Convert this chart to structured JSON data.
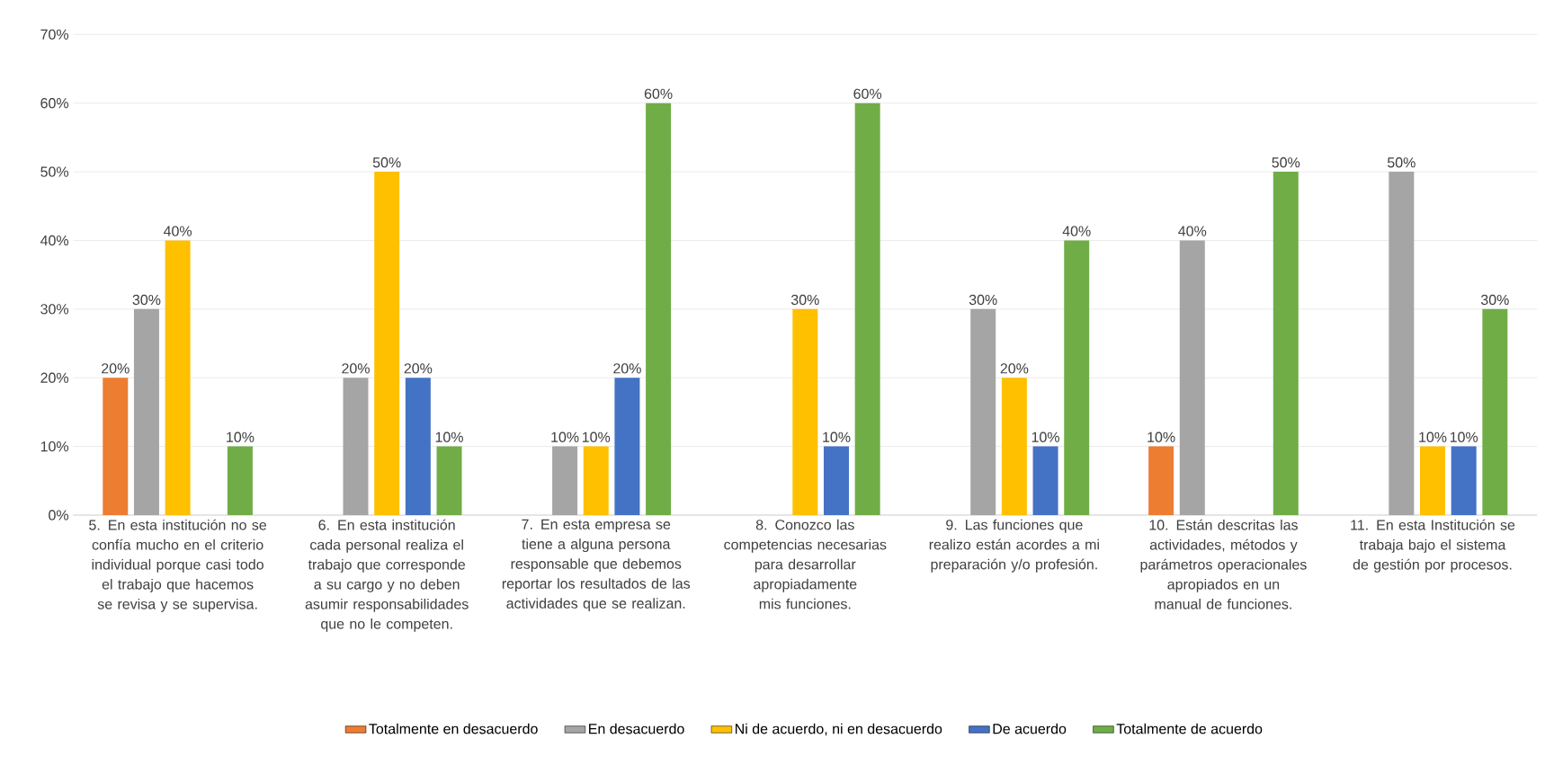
{
  "chart_data": {
    "type": "bar",
    "categories": [
      "5. En esta institución no se confía mucho en el criterio individual porque casi todo el trabajo que hacemos se revisa y se supervisa.",
      "6. En esta institución cada personal realiza el trabajo que corresponde a su cargo y no deben asumir responsabilidades que no le competen.",
      "7. En esta empresa se tiene a alguna persona responsable que debemos reportar los resultados de las actividades que se realizan.",
      "8. Conozco las competencias necesarias para desarrollar apropiadamente mis funciones.",
      "9. Las funciones que realizo están acordes a mi preparación y/o profesión.",
      "10. Están descritas las actividades, métodos y parámetros operacionales apropiados en un manual de funciones.",
      "11. En esta Institución se trabaja bajo el sistema de gestión por procesos."
    ],
    "series": [
      {
        "name": "Totalmente en desacuerdo",
        "color": "#ed7d31",
        "values": [
          20,
          null,
          null,
          null,
          null,
          10,
          null
        ],
        "value_labels": [
          "20%",
          null,
          null,
          null,
          null,
          "10%",
          null
        ]
      },
      {
        "name": "En desacuerdo",
        "color": "#a5a5a5",
        "values": [
          30,
          20,
          10,
          null,
          30,
          40,
          50
        ],
        "value_labels": [
          "30%",
          "20%",
          "10%",
          null,
          "30%",
          "40%",
          "50%"
        ]
      },
      {
        "name": "Ni de acuerdo, ni en desacuerdo",
        "color": "#ffc000",
        "values": [
          40,
          50,
          10,
          30,
          20,
          null,
          10
        ],
        "value_labels": [
          "40%",
          "50%",
          "10%",
          "30%",
          "20%",
          null,
          "10%"
        ]
      },
      {
        "name": "De acuerdo",
        "color": "#4472c4",
        "values": [
          null,
          20,
          20,
          10,
          10,
          null,
          10
        ],
        "value_labels": [
          null,
          "20%",
          "20%",
          "10%",
          "10%",
          null,
          "10%"
        ]
      },
      {
        "name": "Totalmente de acuerdo",
        "color": "#70ad47",
        "values": [
          10,
          10,
          60,
          60,
          40,
          50,
          30
        ],
        "value_labels": [
          "10%",
          "10%",
          "60%",
          "60%",
          "40%",
          "50%",
          "30%"
        ]
      }
    ],
    "ylim": [
      0,
      70
    ],
    "yticks": [
      {
        "value": 0,
        "label": "0%"
      },
      {
        "value": 10,
        "label": "10%"
      },
      {
        "value": 20,
        "label": "20%"
      },
      {
        "value": 30,
        "label": "30%"
      },
      {
        "value": 40,
        "label": "40%"
      },
      {
        "value": 50,
        "label": "50%"
      },
      {
        "value": 60,
        "label": "60%"
      },
      {
        "value": 70,
        "label": "70%"
      }
    ],
    "grid": "y",
    "legend": "bottom"
  }
}
